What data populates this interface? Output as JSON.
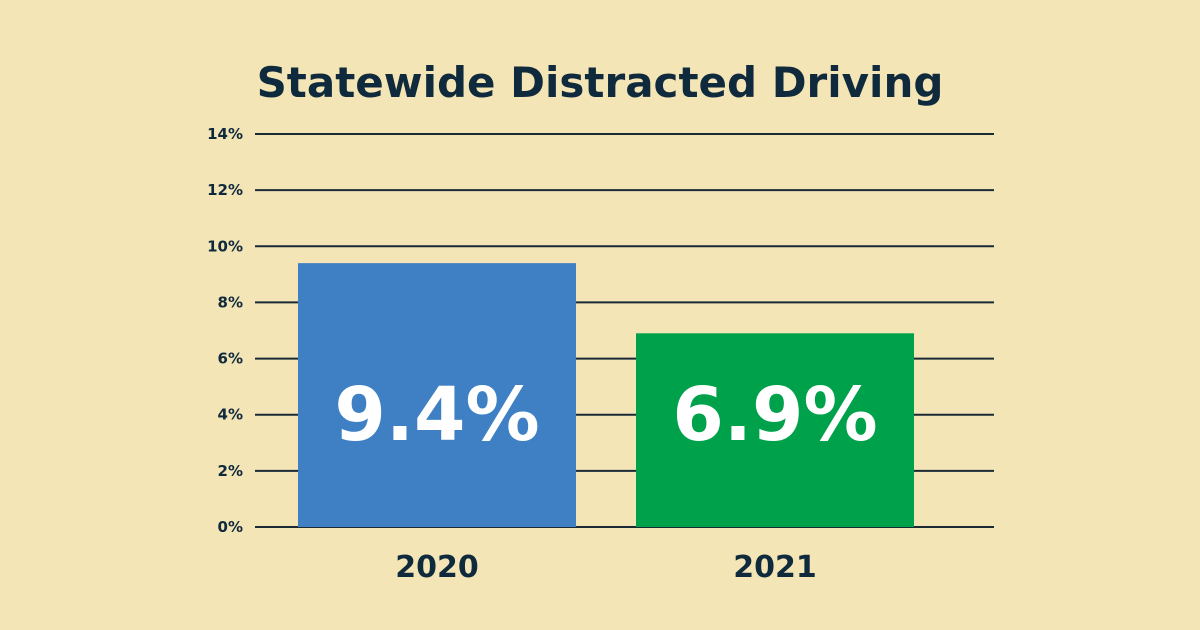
{
  "chart_data": {
    "type": "bar",
    "title": "Statewide Distracted Driving",
    "categories": [
      "2020",
      "2021"
    ],
    "values": [
      9.4,
      6.9
    ],
    "data_labels": [
      "9.4%",
      "6.9%"
    ],
    "bar_colors": [
      "#3f80c4",
      "#00a14b"
    ],
    "xlabel": "",
    "ylabel": "",
    "ylim": [
      0,
      14
    ],
    "yticks": [
      0,
      2,
      4,
      6,
      8,
      10,
      12,
      14
    ],
    "ytick_labels": [
      "0%",
      "2%",
      "4%",
      "6%",
      "8%",
      "10%",
      "12%",
      "14%"
    ],
    "grid": true,
    "legend": "none"
  }
}
